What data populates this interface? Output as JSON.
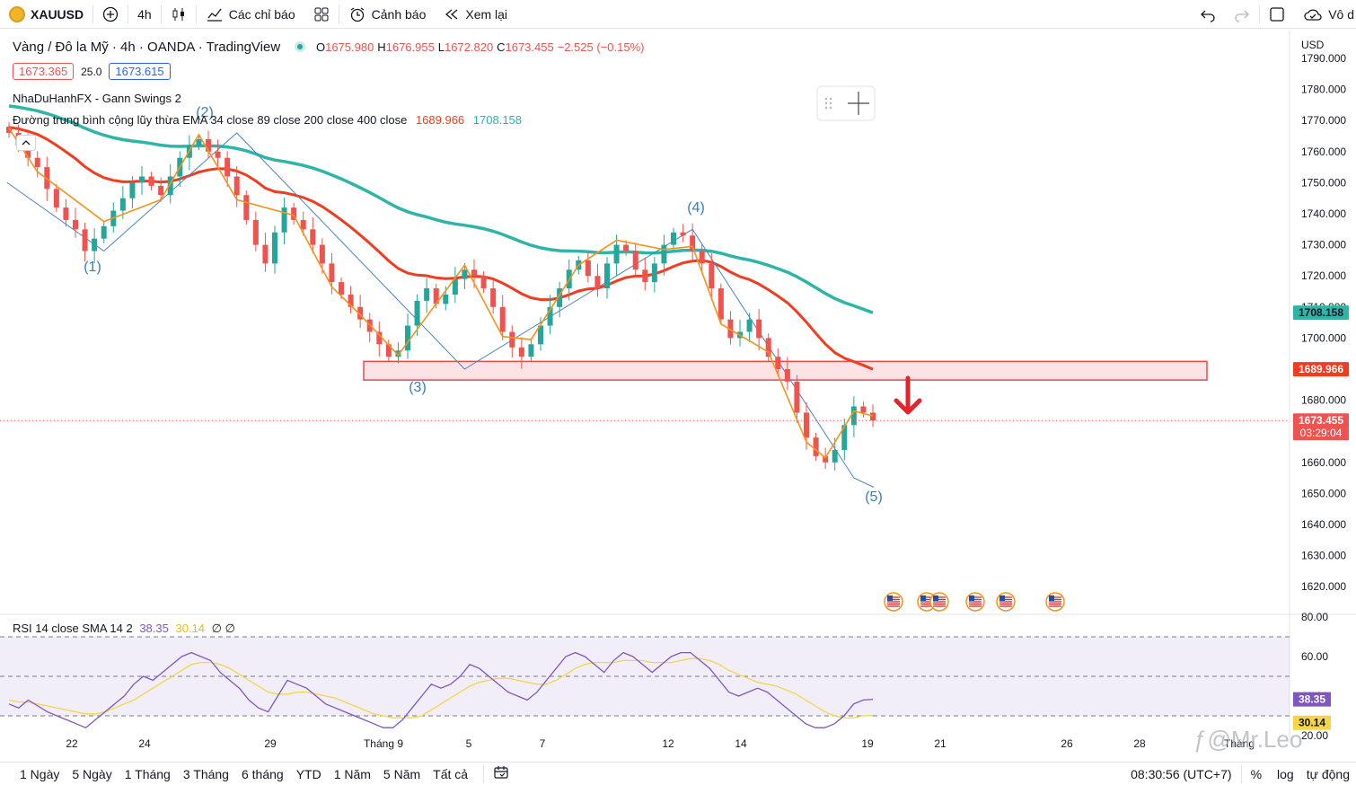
{
  "toolbar": {
    "symbol": "XAUUSD",
    "interval": "4h",
    "indicators_label": "Các chỉ báo",
    "alert_label": "Cảnh báo",
    "replay_label": "Xem lại",
    "right_label": "Vô d"
  },
  "legend": {
    "title": "Vàng / Đô la Mỹ · 4h · OANDA · TradingView",
    "o_label": "O",
    "o": "1675.980",
    "h_label": "H",
    "h": "1676.955",
    "l_label": "L",
    "l": "1672.820",
    "c_label": "C",
    "c": "1673.455",
    "change": "−2.525 (−0.15%)",
    "bid": "1673.365",
    "spread": "25.0",
    "ask": "1673.615",
    "indicator1": "NhaDuHanhFX - Gann Swings 2",
    "indicator2": "Đường trung bình cộng lũy thừa EMA 34 close 89 close 200 close 400 close",
    "ema_val1": "1689.966",
    "ema_val2": "1708.158"
  },
  "rsi_legend": {
    "label": "RSI 14 close SMA 14 2",
    "v1": "38.35",
    "v2": "30.14",
    "v3": "∅ ∅"
  },
  "colors": {
    "up": "#26a69a",
    "down": "#ef5350",
    "ema_red": "#f23c1f",
    "ema_teal": "#2eb5a8",
    "swing": "#f7931a",
    "gann": "#4a86c0",
    "zone": "#e54b4b",
    "rsi": "#7e57c2",
    "rsi_sma": "#f5d547"
  },
  "chart_data": {
    "type": "candlestick",
    "y_axis": {
      "currency": "USD",
      "ticks": [
        "1790.000",
        "1780.000",
        "1770.000",
        "1760.000",
        "1750.000",
        "1740.000",
        "1730.000",
        "1720.000",
        "1710.000",
        "1700.000",
        "1690.000",
        "1680.000",
        "1670.000",
        "1660.000",
        "1650.000",
        "1640.000",
        "1630.000",
        "1620.000"
      ],
      "range": [
        1616,
        1792
      ]
    },
    "x_axis": {
      "ticks": [
        "22",
        "24",
        "29",
        "Tháng 9",
        "5",
        "7",
        "12",
        "14",
        "19",
        "21",
        "26",
        "28",
        "Tháng"
      ]
    },
    "price_labels": {
      "ema2": "1708.158",
      "ema1": "1689.966",
      "last": "1673.455",
      "countdown": "03:29:04"
    },
    "swing_labels": [
      "(1)",
      "(2)",
      "(3)",
      "(4)",
      "(5)"
    ],
    "swing_points": [
      {
        "label": "(1)",
        "price": 1728
      },
      {
        "label": "(2)",
        "price": 1766
      },
      {
        "label": "(3)",
        "price": 1690
      },
      {
        "label": "(4)",
        "price": 1735
      },
      {
        "label": "(5)",
        "price": 1655
      }
    ],
    "zone": {
      "top": 1692.5,
      "bottom": 1686.5
    },
    "ema_slow_end": 1708.158,
    "ema_fast_end": 1689.966,
    "last_price": 1673.455,
    "closes": [
      1766,
      1762,
      1758,
      1755,
      1748,
      1742,
      1738,
      1735,
      1728,
      1732,
      1736,
      1741,
      1745,
      1750,
      1752,
      1749,
      1746,
      1752,
      1758,
      1762,
      1764,
      1760,
      1758,
      1752,
      1746,
      1738,
      1730,
      1724,
      1734,
      1742,
      1738,
      1735,
      1730,
      1724,
      1718,
      1714,
      1710,
      1706,
      1702,
      1698,
      1694,
      1696,
      1704,
      1712,
      1716,
      1711,
      1714,
      1719,
      1722,
      1720,
      1716,
      1710,
      1702,
      1697,
      1694,
      1698,
      1704,
      1710,
      1716,
      1722,
      1725,
      1720,
      1716,
      1724,
      1730,
      1728,
      1722,
      1718,
      1724,
      1730,
      1734,
      1733,
      1728,
      1724,
      1716,
      1706,
      1700,
      1702,
      1706,
      1700,
      1694,
      1690,
      1686,
      1676,
      1668,
      1662,
      1660,
      1664,
      1672,
      1678,
      1676,
      1673.455
    ],
    "rsi": {
      "range": [
        20,
        80
      ],
      "ticks": [
        "80.00",
        "60.00",
        "40.00",
        "20.00"
      ],
      "bands": [
        70,
        50,
        30
      ],
      "values": [
        36,
        34,
        38,
        35,
        32,
        30,
        28,
        26,
        24,
        28,
        32,
        36,
        40,
        46,
        50,
        48,
        52,
        56,
        60,
        62,
        60,
        58,
        52,
        48,
        44,
        38,
        34,
        32,
        40,
        48,
        46,
        44,
        40,
        36,
        34,
        32,
        30,
        28,
        26,
        24,
        24,
        28,
        34,
        40,
        46,
        44,
        46,
        50,
        56,
        54,
        50,
        46,
        42,
        40,
        38,
        42,
        48,
        54,
        60,
        62,
        60,
        56,
        52,
        58,
        62,
        60,
        56,
        52,
        56,
        60,
        62,
        62,
        58,
        54,
        48,
        42,
        40,
        42,
        44,
        42,
        38,
        34,
        30,
        26,
        24,
        24,
        26,
        30,
        36,
        38,
        38.35
      ],
      "sma": [
        38,
        37,
        37,
        36,
        35,
        34,
        33,
        32,
        31,
        31,
        32,
        34,
        36,
        38,
        41,
        44,
        47,
        50,
        53,
        56,
        57,
        57,
        56,
        54,
        51,
        48,
        45,
        42,
        41,
        41,
        42,
        42,
        41,
        40,
        39,
        37,
        35,
        33,
        31,
        30,
        29,
        29,
        29,
        30,
        33,
        36,
        39,
        42,
        45,
        47,
        48,
        49,
        49,
        48,
        47,
        46,
        46,
        48,
        51,
        54,
        56,
        57,
        57,
        57,
        58,
        58,
        58,
        57,
        57,
        57,
        58,
        59,
        59,
        58,
        56,
        53,
        51,
        49,
        47,
        46,
        45,
        43,
        41,
        38,
        35,
        32,
        30,
        29,
        29,
        30,
        30.14
      ],
      "v_sma_end": 30.14
    }
  },
  "bottom": {
    "ranges": [
      "1 Ngày",
      "5 Ngày",
      "1 Tháng",
      "3 Tháng",
      "6 tháng",
      "YTD",
      "1 Năm",
      "5 Năm",
      "Tất cả"
    ],
    "time": "08:30:56 (UTC+7)",
    "pct": "%",
    "log": "log",
    "auto": "tự động"
  },
  "watermark": "@Mr.Leo"
}
